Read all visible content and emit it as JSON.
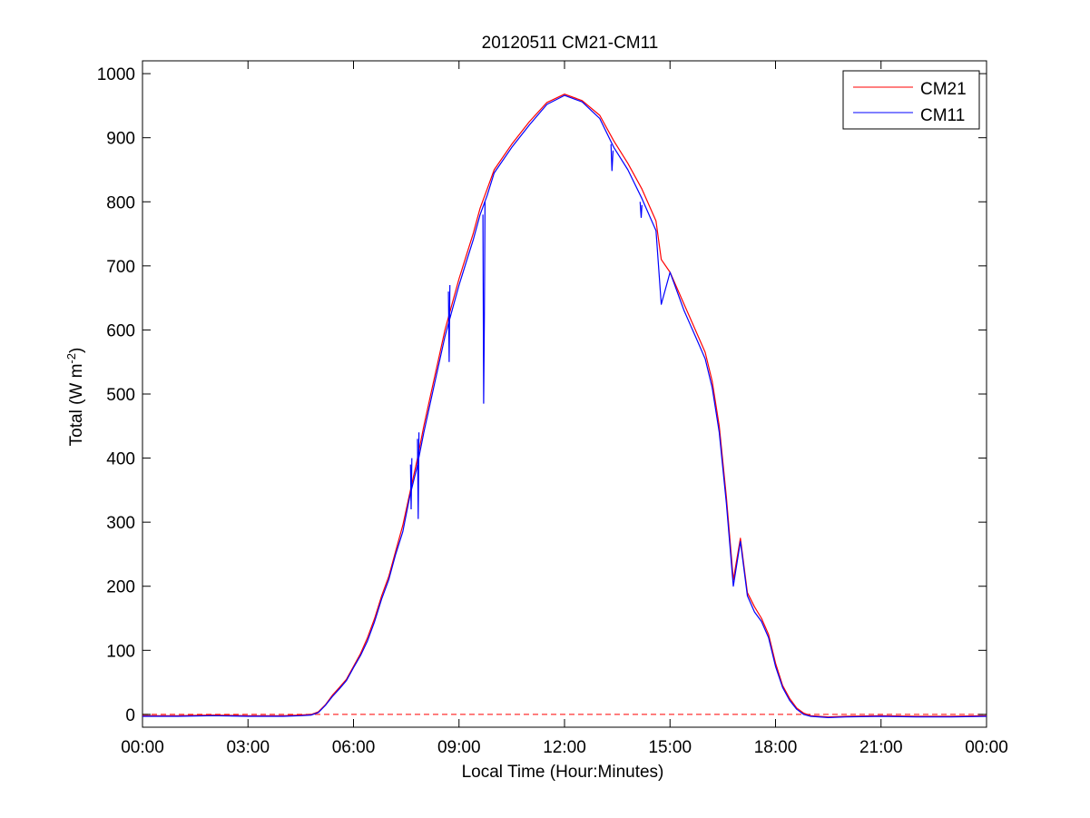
{
  "chart_data": {
    "type": "line",
    "title": "20120511 CM21-CM11",
    "xlabel": "Local Time (Hour:Minutes)",
    "ylabel": "Total (W m",
    "ylabel_sup": "-2",
    "ylabel_close": ")",
    "x_unit": "hours",
    "xlim": [
      0,
      24
    ],
    "ylim": [
      -20,
      1020
    ],
    "x_ticks": [
      0,
      3,
      6,
      9,
      12,
      15,
      18,
      21,
      24
    ],
    "x_tick_labels": [
      "00:00",
      "03:00",
      "06:00",
      "09:00",
      "12:00",
      "15:00",
      "18:00",
      "21:00",
      "00:00"
    ],
    "y_ticks": [
      0,
      100,
      200,
      300,
      400,
      500,
      600,
      700,
      800,
      900,
      1000
    ],
    "y_tick_labels": [
      "0",
      "100",
      "200",
      "300",
      "400",
      "500",
      "600",
      "700",
      "800",
      "900",
      "1000"
    ],
    "grid": false,
    "legend_position": "top-right",
    "reference_line": {
      "y": 0,
      "style": "dashed",
      "color": "#ff0000"
    },
    "series": [
      {
        "name": "CM21",
        "color": "#ff0000",
        "x": [
          0,
          1,
          2,
          3,
          4,
          4.5,
          4.8,
          5.0,
          5.2,
          5.4,
          5.6,
          5.8,
          6.0,
          6.2,
          6.4,
          6.6,
          6.8,
          7.0,
          7.2,
          7.4,
          7.6,
          7.8,
          8.0,
          8.2,
          8.4,
          8.6,
          8.8,
          9.0,
          9.2,
          9.4,
          9.6,
          9.8,
          10.0,
          10.5,
          11.0,
          11.5,
          12.0,
          12.5,
          13.0,
          13.4,
          13.8,
          14.2,
          14.6,
          14.75,
          15.0,
          15.4,
          15.8,
          16.0,
          16.2,
          16.4,
          16.6,
          16.8,
          17.0,
          17.2,
          17.4,
          17.6,
          17.8,
          18.0,
          18.2,
          18.4,
          18.6,
          18.8,
          19.0,
          19.5,
          20,
          21,
          22,
          23,
          24
        ],
        "y": [
          -2,
          -2,
          -1,
          -2,
          -2,
          -1,
          0,
          4,
          15,
          30,
          42,
          55,
          75,
          95,
          120,
          150,
          185,
          215,
          255,
          295,
          345,
          395,
          450,
          500,
          550,
          600,
          640,
          680,
          715,
          750,
          790,
          820,
          850,
          890,
          925,
          955,
          968,
          958,
          935,
          895,
          860,
          820,
          770,
          710,
          690,
          640,
          590,
          565,
          520,
          450,
          340,
          210,
          275,
          190,
          168,
          150,
          125,
          80,
          45,
          25,
          10,
          2,
          -2,
          -4,
          -3,
          -2,
          -3,
          -3,
          -2
        ]
      },
      {
        "name": "CM11",
        "color": "#0000ff",
        "x": [
          0,
          1,
          2,
          3,
          4,
          4.5,
          4.8,
          5.0,
          5.2,
          5.4,
          5.6,
          5.8,
          6.0,
          6.2,
          6.4,
          6.6,
          6.8,
          7.0,
          7.2,
          7.4,
          7.6,
          7.8,
          8.0,
          8.2,
          8.4,
          8.6,
          8.8,
          9.0,
          9.2,
          9.4,
          9.6,
          9.8,
          10.0,
          10.5,
          11.0,
          11.5,
          12.0,
          12.5,
          13.0,
          13.4,
          13.8,
          14.2,
          14.6,
          14.75,
          15.0,
          15.4,
          15.8,
          16.0,
          16.2,
          16.4,
          16.6,
          16.8,
          17.0,
          17.2,
          17.4,
          17.6,
          17.8,
          18.0,
          18.2,
          18.4,
          18.6,
          18.8,
          19.0,
          19.5,
          20,
          21,
          22,
          23,
          24
        ],
        "y": [
          -3,
          -3,
          -2,
          -3,
          -3,
          -2,
          -1,
          3,
          14,
          28,
          40,
          53,
          73,
          92,
          115,
          145,
          180,
          210,
          250,
          285,
          340,
          385,
          440,
          490,
          540,
          590,
          630,
          670,
          705,
          740,
          780,
          810,
          845,
          885,
          920,
          952,
          966,
          956,
          930,
          885,
          850,
          805,
          755,
          640,
          690,
          630,
          580,
          555,
          510,
          440,
          330,
          200,
          270,
          185,
          160,
          145,
          120,
          75,
          42,
          22,
          8,
          0,
          -3,
          -5,
          -4,
          -3,
          -4,
          -4,
          -3
        ]
      }
    ],
    "spikes": [
      {
        "series": "CM11",
        "x": [
          9.68,
          9.7,
          9.72,
          9.74
        ],
        "y": [
          780,
          485,
          620,
          800
        ]
      },
      {
        "series": "CM11",
        "x": [
          8.7,
          8.72,
          8.74
        ],
        "y": [
          660,
          550,
          670
        ]
      },
      {
        "series": "CM11",
        "x": [
          7.82,
          7.84,
          7.86
        ],
        "y": [
          430,
          305,
          440
        ]
      },
      {
        "series": "CM11",
        "x": [
          7.62,
          7.64,
          7.66
        ],
        "y": [
          390,
          320,
          400
        ]
      },
      {
        "series": "CM11",
        "x": [
          13.32,
          13.35,
          13.38
        ],
        "y": [
          890,
          848,
          880
        ]
      },
      {
        "series": "CM11",
        "x": [
          14.15,
          14.18,
          14.2
        ],
        "y": [
          800,
          775,
          795
        ]
      }
    ]
  }
}
